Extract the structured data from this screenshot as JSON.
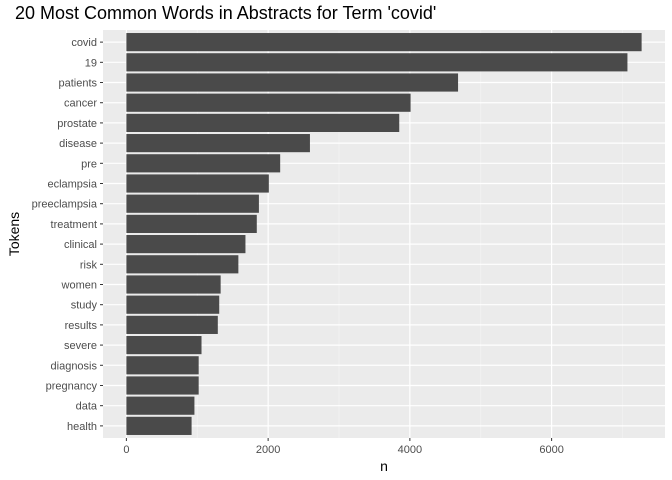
{
  "chart_data": {
    "type": "bar",
    "orientation": "horizontal",
    "title": "20 Most Common Words in Abstracts for Term 'covid'",
    "xlabel": "n",
    "ylabel": "Tokens",
    "categories": [
      "covid",
      "19",
      "patients",
      "cancer",
      "prostate",
      "disease",
      "pre",
      "eclampsia",
      "preeclampsia",
      "treatment",
      "clinical",
      "risk",
      "women",
      "study",
      "results",
      "severe",
      "diagnosis",
      "pregnancy",
      "data",
      "health"
    ],
    "values": [
      7270,
      7070,
      4680,
      4010,
      3850,
      2590,
      2170,
      2010,
      1870,
      1840,
      1680,
      1580,
      1330,
      1310,
      1290,
      1060,
      1020,
      1020,
      960,
      920
    ],
    "xlim": [
      -330,
      7600
    ],
    "xticks": [
      0,
      2000,
      4000,
      6000
    ],
    "xtick_labels": [
      "0",
      "2000",
      "4000",
      "6000"
    ],
    "grid": true,
    "legend": "none",
    "colors": {
      "bar": "#4a4a4a",
      "panel": "#ebebeb",
      "grid_major": "#ffffff",
      "grid_minor": "#f5f5f5"
    }
  }
}
